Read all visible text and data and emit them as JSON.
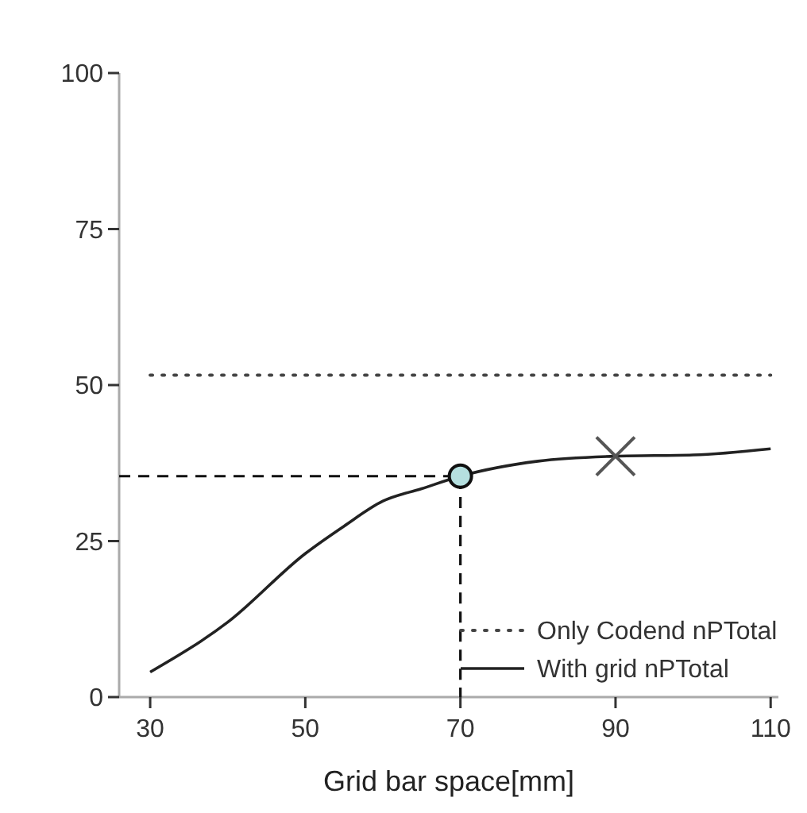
{
  "chart_data": {
    "type": "line",
    "xlabel": "Grid bar space[mm]",
    "xlim": [
      26,
      111
    ],
    "xticks": [
      30,
      50,
      70,
      90,
      110
    ],
    "ylim": [
      0,
      100
    ],
    "yticks": [
      0,
      25,
      50,
      75,
      100
    ],
    "grid": false,
    "legend": "bottom right",
    "series": [
      {
        "name": "Only Codend nPTotal",
        "color": "#444444",
        "x": [
          30,
          110
        ],
        "values": [
          51.6,
          51.6
        ],
        "line_style": "dotted"
      },
      {
        "name": "With grid nPTotal",
        "color": "#222222",
        "x": [
          30,
          40,
          50,
          55,
          60,
          65,
          70,
          80,
          90,
          100,
          110
        ],
        "values": [
          4.0,
          12.0,
          23.0,
          27.4,
          31.4,
          33.4,
          35.4,
          37.8,
          38.6,
          38.8,
          39.8
        ],
        "line_style": "solid"
      },
      {
        "color": "#111111",
        "x": [
          26,
          70,
          70
        ],
        "values": [
          35.4,
          35.4,
          0
        ],
        "line_style": "dashed"
      },
      {
        "type": "scatter",
        "color": "#b5e0e0",
        "x": [
          70
        ],
        "values": [
          35.4
        ],
        "marker": "circle"
      },
      {
        "type": "scatter",
        "color": "#555555",
        "x": [
          90
        ],
        "values": [
          38.6
        ],
        "marker": "cross"
      }
    ]
  }
}
